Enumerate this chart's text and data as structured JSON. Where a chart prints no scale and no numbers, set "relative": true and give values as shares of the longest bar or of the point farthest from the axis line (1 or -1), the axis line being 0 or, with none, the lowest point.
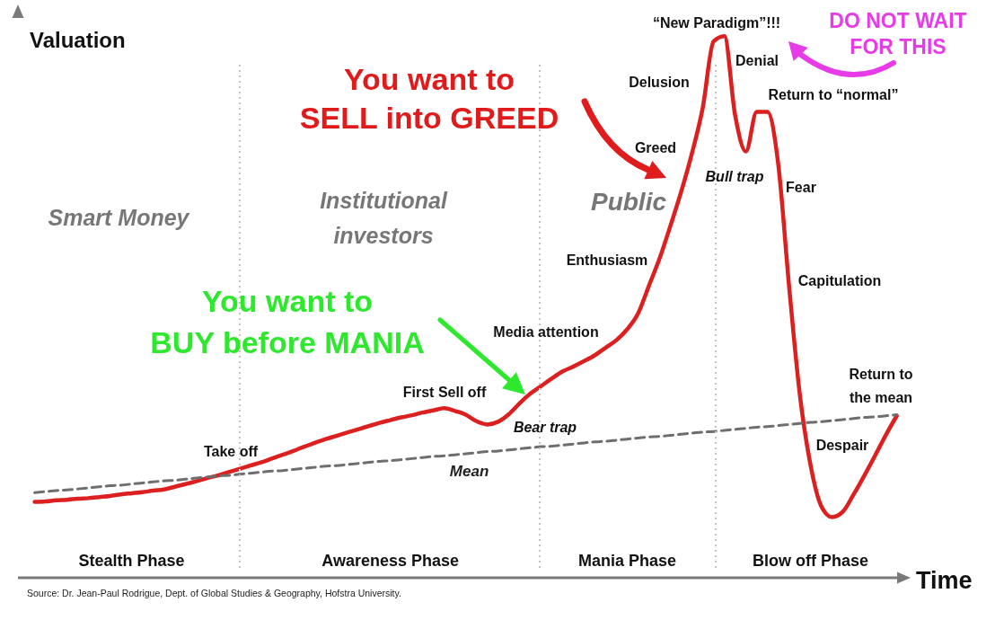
{
  "chart_data": {
    "type": "line",
    "xlabel": "Time",
    "ylabel": "Valuation",
    "relative": true,
    "line_style": "solid",
    "categories": [
      null,
      null,
      null,
      null,
      null,
      null,
      null,
      null,
      null,
      "Stealth Phase",
      null,
      null,
      null,
      null,
      null,
      null,
      null,
      null,
      null,
      null,
      null,
      null,
      null,
      null,
      null,
      null,
      null,
      null,
      null,
      null,
      null,
      null,
      null,
      "Awareness Phase",
      null,
      null,
      null,
      null,
      null,
      null,
      null,
      null,
      null,
      null,
      null,
      null,
      null,
      null,
      null,
      null,
      null,
      null,
      null,
      null,
      null,
      "Mania Phase",
      null,
      null,
      null,
      null,
      null,
      null,
      null,
      null,
      null,
      null,
      null,
      null,
      null,
      null,
      null,
      null,
      "Blow off Phase",
      null,
      null,
      null,
      null,
      null,
      null,
      null,
      null
    ],
    "series": [
      {
        "color": "#dc1f1f",
        "values": [
          0.14,
          0.141,
          0.143,
          0.144,
          0.146,
          0.147,
          0.149,
          0.151,
          0.154,
          0.156,
          0.158,
          0.161,
          0.163,
          0.168,
          0.173,
          0.178,
          0.184,
          0.189,
          0.195,
          0.201,
          0.207,
          0.213,
          0.22,
          0.227,
          0.234,
          0.242,
          0.249,
          0.256,
          0.262,
          0.268,
          0.274,
          0.28,
          0.286,
          0.291,
          0.296,
          0.3,
          0.305,
          0.309,
          0.313,
          0.308,
          0.301,
          0.289,
          0.283,
          0.288,
          0.302,
          0.322,
          0.34,
          0.354,
          0.368,
          0.381,
          0.39,
          0.4,
          0.411,
          0.425,
          0.439,
          0.459,
          0.488,
          0.539,
          0.59,
          0.65,
          0.713,
          0.784,
          0.868,
          0.99,
          1,
          0.854,
          0.787,
          0.86,
          0.86,
          0.764,
          0.54,
          0.339,
          0.208,
          0.132,
          0.112,
          0.122,
          0.154,
          0.189,
          0.226,
          0.264,
          0.299
        ]
      },
      {
        "name": "Mean",
        "color": "#6e6e6e",
        "line_style": "dashed",
        "values": [
          0.157,
          0.159,
          0.161,
          0.162,
          0.164,
          0.166,
          0.168,
          0.17,
          0.171,
          0.173,
          0.175,
          0.177,
          0.179,
          0.18,
          0.182,
          0.184,
          0.186,
          0.188,
          0.189,
          0.191,
          0.193,
          0.195,
          0.197,
          0.198,
          0.2,
          0.202,
          0.204,
          0.206,
          0.207,
          0.209,
          0.211,
          0.213,
          0.215,
          0.216,
          0.218,
          0.22,
          0.222,
          0.224,
          0.225,
          0.227,
          0.229,
          0.231,
          0.233,
          0.234,
          0.236,
          0.238,
          0.24,
          0.242,
          0.243,
          0.245,
          0.247,
          0.249,
          0.251,
          0.252,
          0.254,
          0.256,
          0.258,
          0.26,
          0.261,
          0.263,
          0.265,
          0.267,
          0.269,
          0.27,
          0.272,
          0.274,
          0.276,
          0.278,
          0.279,
          0.281,
          0.283,
          0.285,
          0.287,
          0.288,
          0.29,
          0.292,
          0.294,
          0.296,
          0.297,
          0.299,
          0.301
        ]
      }
    ],
    "annotations": [
      "Take off",
      "First Sell off",
      "Bear trap",
      "Media attention",
      "Enthusiasm",
      "Greed",
      "Delusion",
      "“New Paradigm”!!!",
      "Denial",
      "Bull trap",
      "Return to “normal”",
      "Fear",
      "Capitulation",
      "Despair",
      "Return to\nthe mean",
      "Smart Money",
      "Institutional\ninvestors",
      "Public",
      "You want to\nSELL into GREED",
      "You want to\nBUY before MANIA",
      "DO NOT WAIT\nFOR THIS",
      "Source: Dr. Jean-Paul Rodrigue, Dept. of Global Studies & Geography, Hofstra University."
    ]
  }
}
